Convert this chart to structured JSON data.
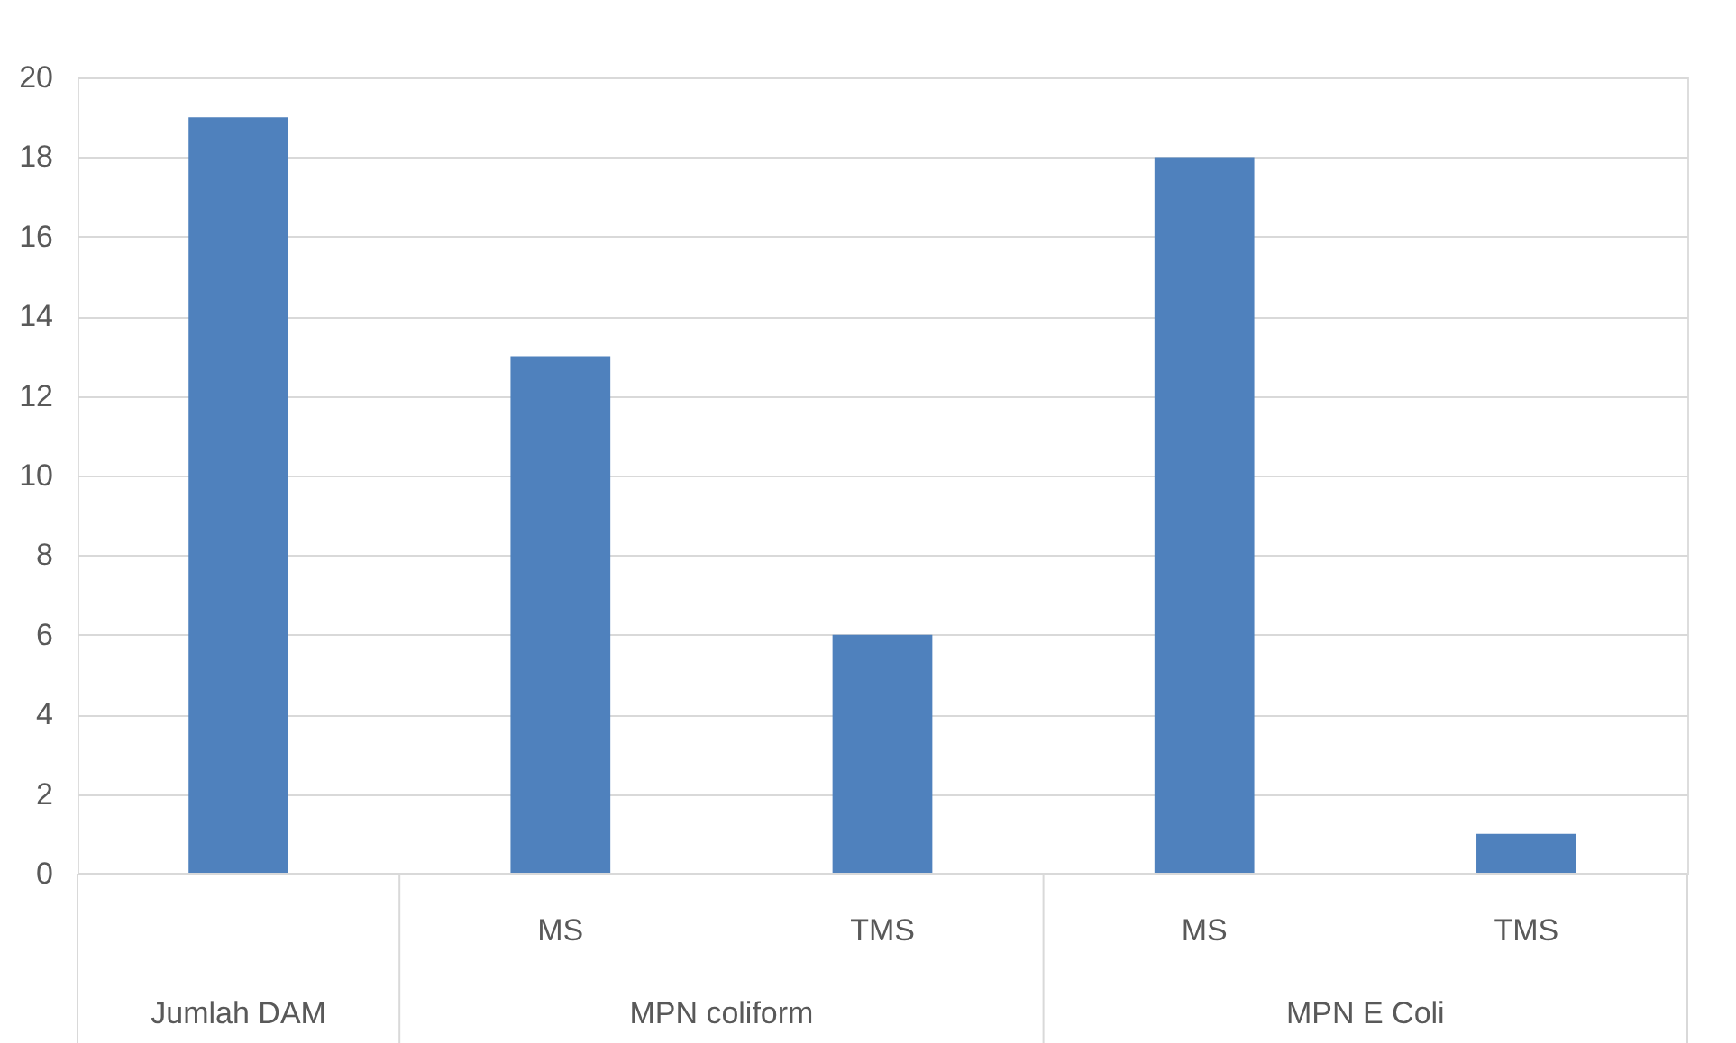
{
  "chart_data": {
    "type": "bar",
    "categories": [
      null,
      "MS",
      "TMS",
      "MS",
      "TMS"
    ],
    "values": [
      19,
      13,
      6,
      18,
      1
    ],
    "color": "#4f81bd",
    "annotations": [
      "Jumlah DAM",
      "MPN coliform",
      "MPN E Coli"
    ],
    "ylim": [
      0,
      20
    ],
    "yticks": [
      0,
      2,
      4,
      6,
      8,
      10,
      12,
      14,
      16,
      18,
      20
    ],
    "grid": "y"
  }
}
